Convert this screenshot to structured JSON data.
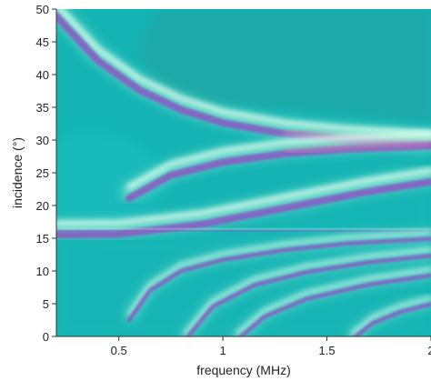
{
  "chart_data": {
    "type": "heatmap",
    "xlabel": "frequency (MHz)",
    "ylabel": "incidence (°)",
    "xlim": [
      0.2,
      2.0
    ],
    "ylim": [
      0,
      50
    ],
    "x_ticks": [
      0.5,
      1,
      1.5,
      2
    ],
    "x_tick_labels": [
      "0.5",
      "1",
      "1.5",
      "2"
    ],
    "y_ticks": [
      0,
      5,
      10,
      15,
      20,
      25,
      30,
      35,
      40,
      45,
      50
    ],
    "y_tick_labels": [
      "0",
      "5",
      "10",
      "15",
      "20",
      "25",
      "30",
      "35",
      "40",
      "45",
      "50"
    ],
    "colors": {
      "background": "#14b4b4",
      "teal_dark": "#2a9e9c",
      "light_green": "#a6f7d4",
      "pale": "#e6fff2",
      "purple": "#8a58c4",
      "pink": "#d98fb1"
    },
    "bands": [
      {
        "name": "top-left-curve",
        "points": [
          [
            0.2,
            49.8
          ],
          [
            0.4,
            43
          ],
          [
            0.6,
            38.5
          ],
          [
            0.8,
            35.5
          ],
          [
            1.0,
            33.5
          ],
          [
            1.3,
            31.8
          ],
          [
            1.6,
            30.9
          ],
          [
            2.0,
            30.2
          ]
        ]
      },
      {
        "name": "mid-curve-upper",
        "points": [
          [
            0.55,
            22
          ],
          [
            0.75,
            25.5
          ],
          [
            1.0,
            27.5
          ],
          [
            1.3,
            28.8
          ],
          [
            1.6,
            29.5
          ],
          [
            2.0,
            30
          ]
        ]
      },
      {
        "name": "mid-curve-lower",
        "points": [
          [
            0.2,
            16.4
          ],
          [
            0.5,
            16.5
          ],
          [
            0.9,
            18
          ],
          [
            1.3,
            20.5
          ],
          [
            1.7,
            23
          ],
          [
            2.0,
            24.5
          ]
        ]
      },
      {
        "name": "horizontal-line",
        "points": [
          [
            0.2,
            16.4
          ],
          [
            0.8,
            16.4
          ],
          [
            1.4,
            16.3
          ],
          [
            2.0,
            16.2
          ]
        ]
      },
      {
        "name": "lower-arc-1",
        "points": [
          [
            0.55,
            3
          ],
          [
            0.65,
            7.5
          ],
          [
            0.8,
            10.5
          ],
          [
            1.0,
            12.2
          ],
          [
            1.3,
            13.7
          ],
          [
            1.6,
            14.7
          ],
          [
            2.0,
            15.4
          ]
        ]
      },
      {
        "name": "lower-arc-2",
        "points": [
          [
            0.82,
            0
          ],
          [
            0.95,
            5
          ],
          [
            1.15,
            8.3
          ],
          [
            1.4,
            10.3
          ],
          [
            1.7,
            11.8
          ],
          [
            2.0,
            12.8
          ]
        ]
      },
      {
        "name": "lower-arc-3",
        "points": [
          [
            1.07,
            0
          ],
          [
            1.2,
            3.5
          ],
          [
            1.4,
            6.2
          ],
          [
            1.7,
            8.4
          ],
          [
            2.0,
            9.8
          ]
        ]
      },
      {
        "name": "lower-arc-4",
        "points": [
          [
            1.62,
            0
          ],
          [
            1.72,
            2.5
          ],
          [
            1.85,
            4.2
          ],
          [
            2.0,
            5.4
          ]
        ]
      }
    ]
  }
}
